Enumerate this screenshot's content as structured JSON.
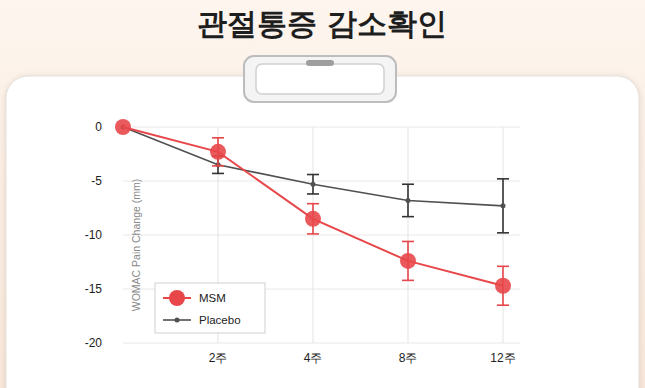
{
  "chart_data": {
    "type": "line",
    "title": "관절통증 감소확인",
    "y_label": "WOMAC Pain Change (mm)",
    "categories": [
      null,
      "2주",
      "4주",
      "8주",
      "12주"
    ],
    "series": [
      {
        "name": "MSM",
        "color": "#e8474a",
        "marker": "circle",
        "values": [
          0,
          -2.3,
          -8.5,
          -12.4,
          -14.7
        ],
        "errors": [
          null,
          1.3,
          1.4,
          1.8,
          1.8
        ]
      },
      {
        "name": "Placebo",
        "color": "#505050",
        "marker": "dot",
        "values": [
          0,
          -3.5,
          -5.3,
          -6.8,
          -7.3
        ],
        "errors": [
          null,
          0.8,
          0.9,
          1.5,
          2.5
        ]
      }
    ],
    "ylim": [
      -20,
      0
    ],
    "yticks": [
      0,
      -5,
      -10,
      -15,
      -20
    ],
    "grid": true,
    "legend": "lower left"
  }
}
